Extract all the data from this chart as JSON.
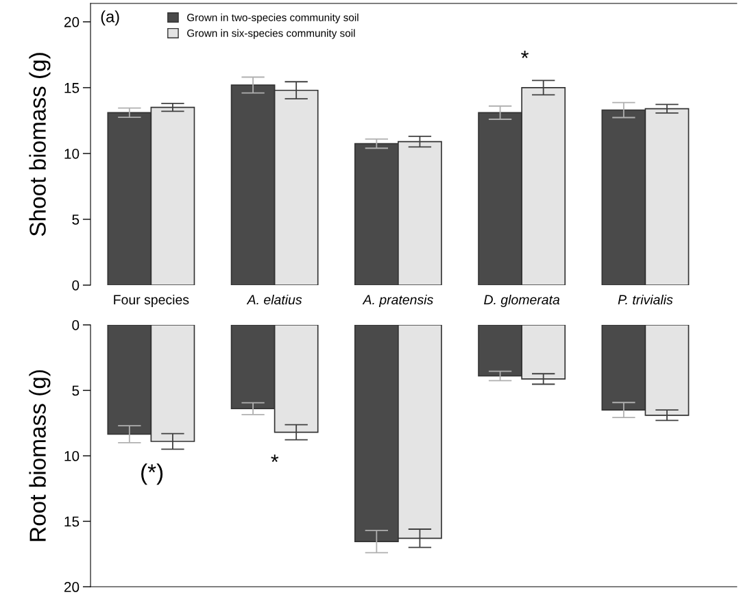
{
  "chart_data": [
    {
      "type": "bar",
      "categories": [
        "Four species",
        "A. elatius",
        "A. pratensis",
        "D. glomerata",
        "P. trivialis"
      ],
      "ylabel": "Shoot biomass (g)",
      "ylim": [
        0,
        21.4
      ],
      "yticks": [
        0,
        5,
        10,
        15,
        20
      ],
      "legend": "top left",
      "grid": false,
      "series": [
        {
          "name": "Grown in two-species community soil",
          "color": "#4a4a4a",
          "values": [
            13.1,
            15.2,
            10.75,
            13.1,
            13.3
          ],
          "errors": [
            0.35,
            0.6,
            0.35,
            0.5,
            0.57
          ]
        },
        {
          "name": "Grown in six-species community soil",
          "color": "#e4e4e4",
          "values": [
            13.5,
            14.8,
            10.9,
            15.0,
            13.4
          ],
          "errors": [
            0.3,
            0.65,
            0.4,
            0.55,
            0.33
          ]
        }
      ],
      "annotations": [
        "(a)",
        "*"
      ]
    },
    {
      "type": "bar",
      "categories": [
        null,
        null,
        null,
        null,
        null
      ],
      "ylabel": "Root biomass (g)",
      "ylim": [
        20,
        0
      ],
      "yticks": [
        0,
        5,
        10,
        15,
        20
      ],
      "grid": false,
      "series": [
        {
          "color": "#4a4a4a",
          "values": [
            8.35,
            6.4,
            16.55,
            3.9,
            6.5
          ],
          "errors": [
            0.65,
            0.45,
            0.85,
            0.36,
            0.57
          ]
        },
        {
          "color": "#e4e4e4",
          "values": [
            8.9,
            8.2,
            16.3,
            4.13,
            6.9
          ],
          "errors": [
            0.6,
            0.58,
            0.7,
            0.4,
            0.4
          ]
        }
      ],
      "annotations": [
        "(*)",
        "*"
      ]
    }
  ]
}
